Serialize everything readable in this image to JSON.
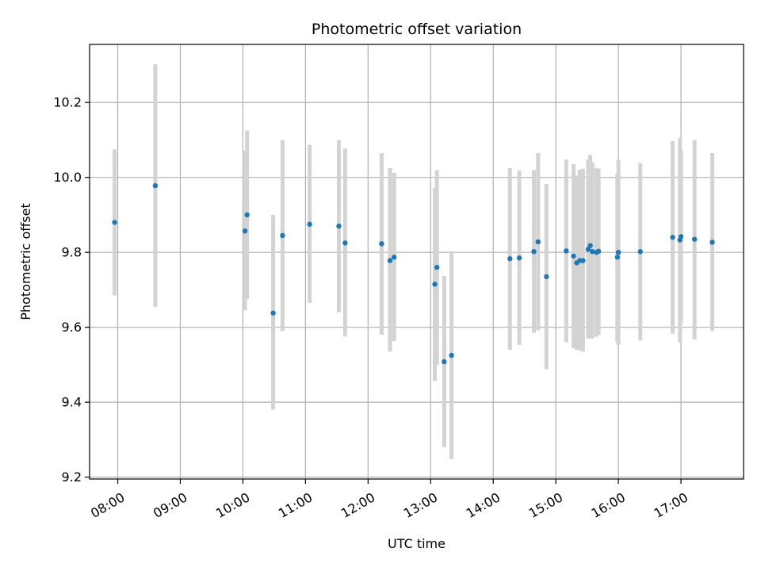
{
  "chart_data": {
    "type": "scatter",
    "title": "Photometric offset variation",
    "xlabel": "UTC time",
    "ylabel": "Photometric offset",
    "x_axis_type": "time",
    "xlim": [
      "07:33",
      "18:00"
    ],
    "ylim": [
      9.195,
      10.355
    ],
    "x_ticks": [
      "08:00",
      "09:00",
      "10:00",
      "11:00",
      "12:00",
      "13:00",
      "14:00",
      "15:00",
      "16:00",
      "17:00"
    ],
    "y_ticks": [
      9.2,
      9.4,
      9.6,
      9.8,
      10.0,
      10.2
    ],
    "y_tick_labels": [
      "9.2",
      "9.4",
      "9.6",
      "9.8",
      "10.0",
      "10.2"
    ],
    "grid": true,
    "legend": "none",
    "colors": {
      "points": "#1f77b4",
      "errorbars": "#d3d3d3",
      "grid": "#b0b0b0"
    },
    "series": [
      {
        "points": [
          {
            "x": "07:57",
            "y": 9.88,
            "low": 9.685,
            "high": 10.075
          },
          {
            "x": "08:36",
            "y": 9.978,
            "low": 9.655,
            "high": 10.302
          },
          {
            "x": "10:02",
            "y": 9.857,
            "low": 9.645,
            "high": 10.072
          },
          {
            "x": "10:04",
            "y": 9.9,
            "low": 9.675,
            "high": 10.125
          },
          {
            "x": "10:29",
            "y": 9.638,
            "low": 9.38,
            "high": 9.9
          },
          {
            "x": "10:38",
            "y": 9.845,
            "low": 9.59,
            "high": 10.1
          },
          {
            "x": "11:04",
            "y": 9.875,
            "low": 9.665,
            "high": 10.087
          },
          {
            "x": "11:32",
            "y": 9.87,
            "low": 9.64,
            "high": 10.1
          },
          {
            "x": "11:38",
            "y": 9.825,
            "low": 9.575,
            "high": 10.077
          },
          {
            "x": "12:13",
            "y": 9.823,
            "low": 9.58,
            "high": 10.065
          },
          {
            "x": "12:21",
            "y": 9.778,
            "low": 9.535,
            "high": 10.025
          },
          {
            "x": "12:25",
            "y": 9.787,
            "low": 9.563,
            "high": 10.012
          },
          {
            "x": "13:04",
            "y": 9.715,
            "low": 9.457,
            "high": 9.972
          },
          {
            "x": "13:06",
            "y": 9.76,
            "low": 9.5,
            "high": 10.02
          },
          {
            "x": "13:13",
            "y": 9.508,
            "low": 9.28,
            "high": 9.737
          },
          {
            "x": "13:20",
            "y": 9.525,
            "low": 9.248,
            "high": 9.803
          },
          {
            "x": "14:16",
            "y": 9.783,
            "low": 9.54,
            "high": 10.025
          },
          {
            "x": "14:25",
            "y": 9.785,
            "low": 9.553,
            "high": 10.018
          },
          {
            "x": "14:39",
            "y": 9.802,
            "low": 9.585,
            "high": 10.02
          },
          {
            "x": "14:43",
            "y": 9.828,
            "low": 9.592,
            "high": 10.065
          },
          {
            "x": "14:51",
            "y": 9.735,
            "low": 9.488,
            "high": 9.982
          },
          {
            "x": "15:10",
            "y": 9.804,
            "low": 9.56,
            "high": 10.048
          },
          {
            "x": "15:17",
            "y": 9.79,
            "low": 9.545,
            "high": 10.035
          },
          {
            "x": "15:20",
            "y": 9.772,
            "low": 9.54,
            "high": 10.005
          },
          {
            "x": "15:23",
            "y": 9.778,
            "low": 9.538,
            "high": 10.02
          },
          {
            "x": "15:26",
            "y": 9.778,
            "low": 9.535,
            "high": 10.023
          },
          {
            "x": "15:31",
            "y": 9.808,
            "low": 9.57,
            "high": 10.048
          },
          {
            "x": "15:33",
            "y": 9.818,
            "low": 9.57,
            "high": 10.06
          },
          {
            "x": "15:35",
            "y": 9.802,
            "low": 9.57,
            "high": 10.04
          },
          {
            "x": "15:39",
            "y": 9.8,
            "low": 9.575,
            "high": 10.025
          },
          {
            "x": "15:41",
            "y": 9.803,
            "low": 9.58,
            "high": 10.023
          },
          {
            "x": "15:59",
            "y": 9.787,
            "low": 9.56,
            "high": 10.01
          },
          {
            "x": "16:00",
            "y": 9.8,
            "low": 9.553,
            "high": 10.047
          },
          {
            "x": "16:21",
            "y": 9.802,
            "low": 9.565,
            "high": 10.038
          },
          {
            "x": "16:52",
            "y": 9.84,
            "low": 9.583,
            "high": 10.097
          },
          {
            "x": "16:59",
            "y": 9.833,
            "low": 9.56,
            "high": 10.105
          },
          {
            "x": "17:00",
            "y": 9.842,
            "low": 9.61,
            "high": 10.073
          },
          {
            "x": "17:13",
            "y": 9.835,
            "low": 9.568,
            "high": 10.1
          },
          {
            "x": "17:30",
            "y": 9.827,
            "low": 9.59,
            "high": 10.065
          }
        ]
      }
    ]
  }
}
